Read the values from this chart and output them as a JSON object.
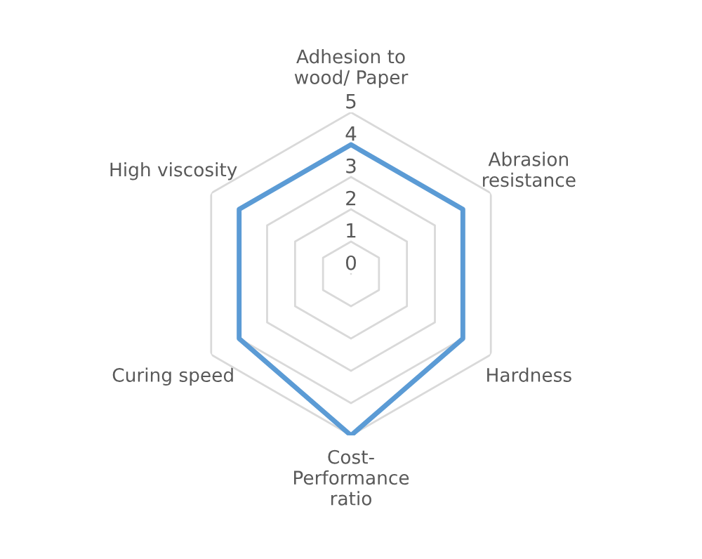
{
  "chart_data": {
    "type": "radar",
    "categories": [
      "Adhesion to\nwood/ Paper",
      "Abrasion\nresistance",
      "Hardness",
      "Cost-\nPerformance\nratio",
      "Curing speed",
      "High viscosity"
    ],
    "series": [
      {
        "color": "#5b9bd5",
        "values": [
          4,
          4,
          4,
          5,
          4,
          4
        ]
      }
    ],
    "ylim": [
      0,
      5
    ],
    "yticks": [
      0,
      1,
      2,
      3,
      4,
      5
    ],
    "grid": true
  }
}
